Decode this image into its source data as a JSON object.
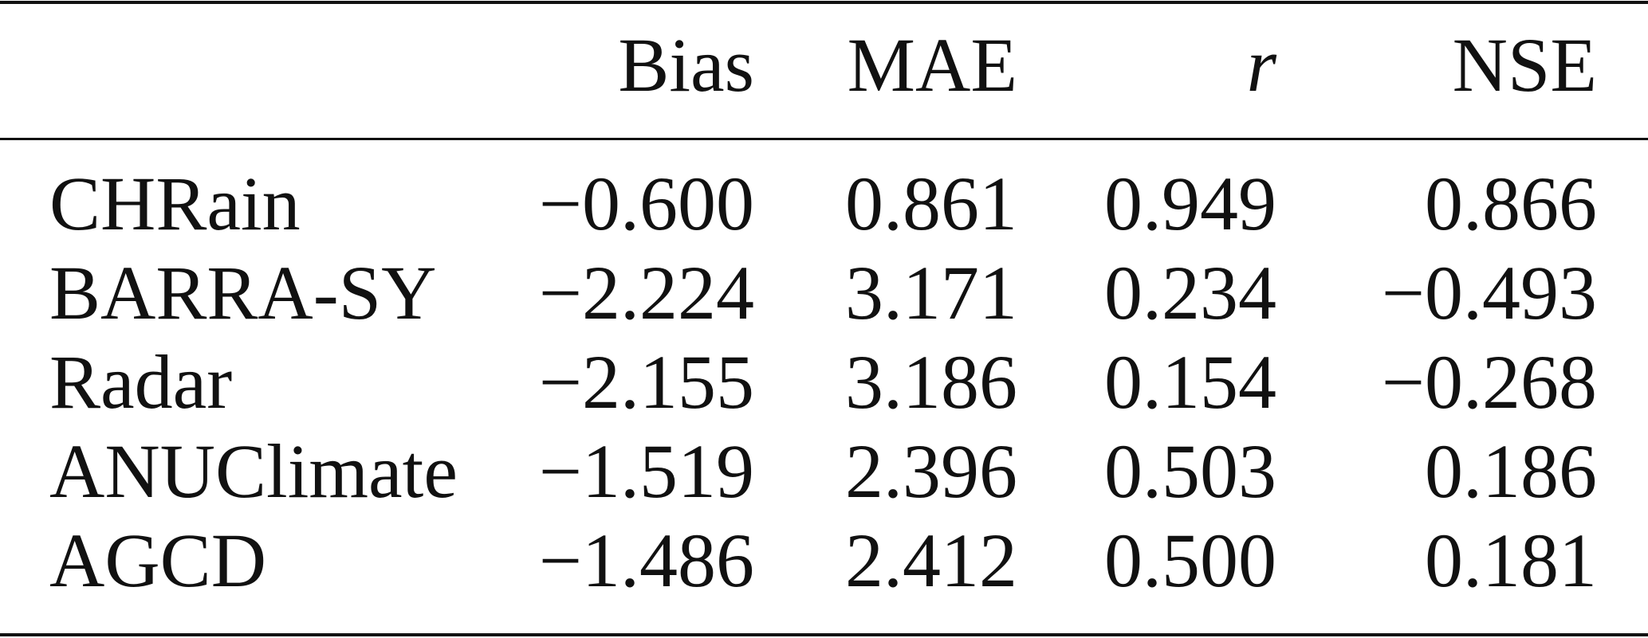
{
  "table": {
    "header": [
      "Bias",
      "MAE",
      "r",
      "NSE"
    ],
    "rows": [
      {
        "label": "CHRain",
        "cells": [
          "−0.600",
          "0.861",
          "0.949",
          "0.866"
        ]
      },
      {
        "label": "BARRA-SY",
        "cells": [
          "−2.224",
          "3.171",
          "0.234",
          "−0.493"
        ]
      },
      {
        "label": "Radar",
        "cells": [
          "−2.155",
          "3.186",
          "0.154",
          "−0.268"
        ]
      },
      {
        "label": "ANUClimate",
        "cells": [
          "−1.519",
          "2.396",
          "0.503",
          "0.186"
        ]
      },
      {
        "label": "AGCD",
        "cells": [
          "−1.486",
          "2.412",
          "0.500",
          "0.181"
        ]
      }
    ]
  }
}
